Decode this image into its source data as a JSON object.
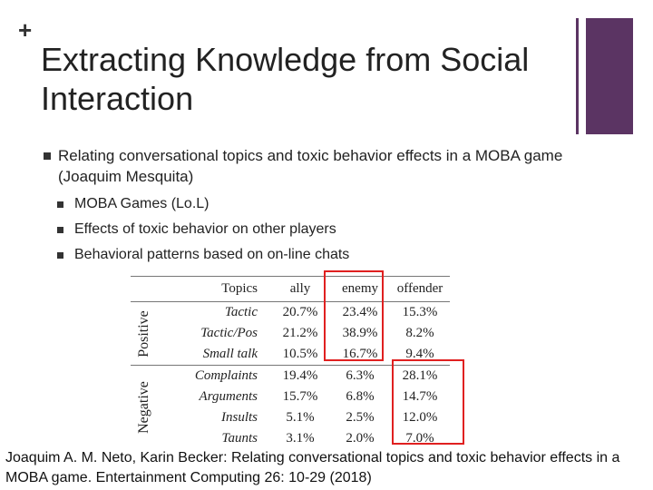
{
  "slide": {
    "plus_mark": "+",
    "title": "Extracting Knowledge from Social Interaction",
    "bullet_main": "Relating conversational topics and toxic behavior effects in a MOBA game (Joaquim Mesquita)",
    "sub_bullets": [
      "MOBA Games (Lo.L)",
      "Effects of toxic behavior on other players",
      "Behavioral patterns based on on-line chats"
    ],
    "citation": "Joaquim A. M. Neto, Karin Becker: Relating conversational topics and toxic behavior effects in a MOBA game. Entertainment Computing 26: 10-29 (2018)",
    "accent_color": "#5b3463",
    "highlight_color": "#e02020"
  },
  "table": {
    "headers": [
      "Topics",
      "ally",
      "enemy",
      "offender"
    ],
    "groups": [
      "Positive",
      "Negative"
    ],
    "rows": [
      {
        "topic": "Tactic",
        "ally": "20.7%",
        "enemy": "23.4%",
        "offender": "15.3%"
      },
      {
        "topic": "Tactic/Pos",
        "ally": "21.2%",
        "enemy": "38.9%",
        "offender": "8.2%"
      },
      {
        "topic": "Small talk",
        "ally": "10.5%",
        "enemy": "16.7%",
        "offender": "9.4%"
      },
      {
        "topic": "Complaints",
        "ally": "19.4%",
        "enemy": "6.3%",
        "offender": "28.1%"
      },
      {
        "topic": "Arguments",
        "ally": "15.7%",
        "enemy": "6.8%",
        "offender": "14.7%"
      },
      {
        "topic": "Insults",
        "ally": "5.1%",
        "enemy": "2.5%",
        "offender": "12.0%"
      },
      {
        "topic": "Taunts",
        "ally": "3.1%",
        "enemy": "2.0%",
        "offender": "7.0%"
      }
    ]
  }
}
